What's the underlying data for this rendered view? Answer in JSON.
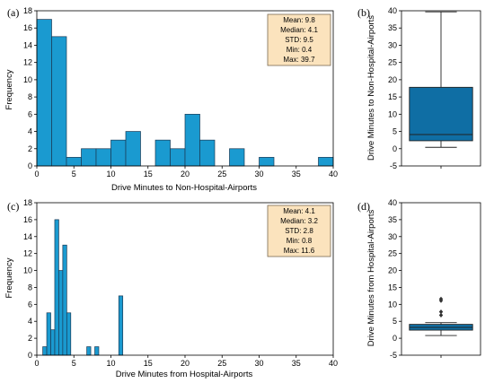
{
  "colors": {
    "bar": "#1a9ad0",
    "box": "#0f6ea4"
  },
  "chart_data": [
    {
      "id": "a",
      "type": "bar",
      "panel_label": "(a)",
      "xlabel": "Drive Minutes to Non-Hospital-Airports",
      "ylabel": "Frequency",
      "xlim": [
        0,
        40
      ],
      "ylim": [
        0,
        18
      ],
      "xticks": [
        0,
        5,
        10,
        15,
        20,
        25,
        30,
        35,
        40
      ],
      "yticks": [
        0,
        2,
        4,
        6,
        8,
        10,
        12,
        14,
        16,
        18
      ],
      "bin_width": 2,
      "bins": [
        {
          "x0": 0,
          "count": 17
        },
        {
          "x0": 2,
          "count": 15
        },
        {
          "x0": 4,
          "count": 1
        },
        {
          "x0": 6,
          "count": 2
        },
        {
          "x0": 8,
          "count": 2
        },
        {
          "x0": 10,
          "count": 3
        },
        {
          "x0": 12,
          "count": 4
        },
        {
          "x0": 16,
          "count": 3
        },
        {
          "x0": 18,
          "count": 2
        },
        {
          "x0": 20,
          "count": 6
        },
        {
          "x0": 22,
          "count": 3
        },
        {
          "x0": 26,
          "count": 2
        },
        {
          "x0": 30,
          "count": 1
        },
        {
          "x0": 38,
          "count": 1
        }
      ],
      "stats": [
        "Mean: 9.8",
        "Median: 4.1",
        "STD: 9.5",
        "Min: 0.4",
        "Max: 39.7"
      ]
    },
    {
      "id": "b",
      "type": "box",
      "panel_label": "(b)",
      "ylabel": "Drive Minutes to Non-Hospital-Airports",
      "ylim": [
        -5,
        40
      ],
      "yticks": [
        -5,
        0,
        5,
        10,
        15,
        20,
        25,
        30,
        35,
        40
      ],
      "whisker_low": 0.4,
      "q1": 2.3,
      "median": 4.1,
      "q3": 17.8,
      "whisker_high": 39.7,
      "outliers": []
    },
    {
      "id": "c",
      "type": "bar",
      "panel_label": "(c)",
      "xlabel": "Drive Minutes from Hospital-Airports",
      "ylabel": "Frequency",
      "xlim": [
        0,
        40
      ],
      "ylim": [
        0,
        18
      ],
      "xticks": [
        0,
        5,
        10,
        15,
        20,
        25,
        30,
        35,
        40
      ],
      "yticks": [
        0,
        2,
        4,
        6,
        8,
        10,
        12,
        14,
        16,
        18
      ],
      "bin_width": 0.54,
      "bins": [
        {
          "x0": 0.8,
          "count": 1
        },
        {
          "x0": 1.34,
          "count": 5
        },
        {
          "x0": 1.88,
          "count": 3
        },
        {
          "x0": 2.42,
          "count": 16
        },
        {
          "x0": 2.96,
          "count": 10
        },
        {
          "x0": 3.5,
          "count": 13
        },
        {
          "x0": 4.04,
          "count": 5
        },
        {
          "x0": 6.74,
          "count": 1
        },
        {
          "x0": 7.82,
          "count": 1
        },
        {
          "x0": 11.06,
          "count": 7
        }
      ],
      "stats": [
        "Mean: 4.1",
        "Median: 3.2",
        "STD: 2.8",
        "Min: 0.8",
        "Max: 11.6"
      ]
    },
    {
      "id": "d",
      "type": "box",
      "panel_label": "(d)",
      "ylabel": "Drive Minutes from Hospital-Airports",
      "ylim": [
        -5,
        40
      ],
      "yticks": [
        -5,
        0,
        5,
        10,
        15,
        20,
        25,
        30,
        35,
        40
      ],
      "whisker_low": 0.8,
      "q1": 2.4,
      "median": 3.2,
      "q3": 4.1,
      "whisker_high": 4.6,
      "outliers": [
        6.8,
        7.8,
        11.1,
        11.6
      ]
    }
  ]
}
